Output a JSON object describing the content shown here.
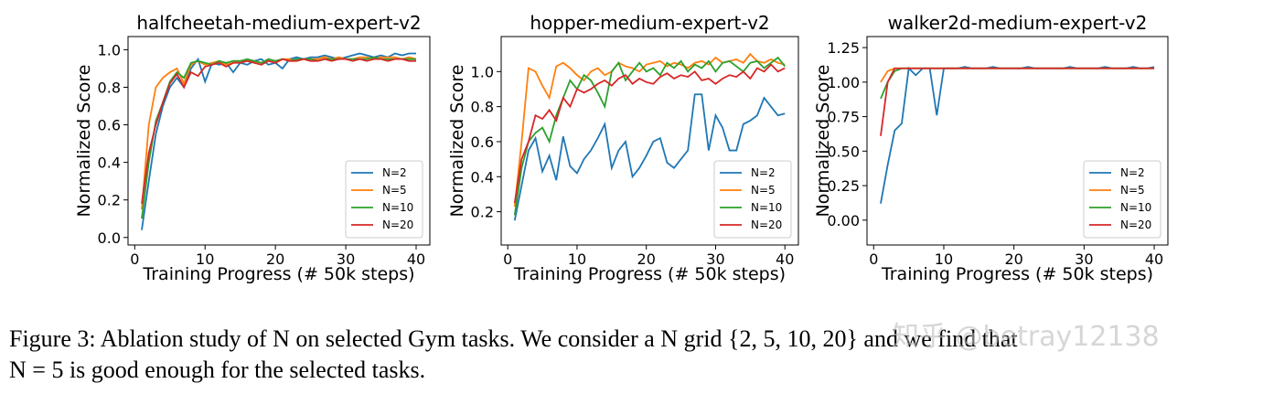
{
  "chart_data": [
    {
      "type": "line",
      "title": "halfcheetah-medium-expert-v2",
      "xlabel": "Training Progress (# 50k steps)",
      "ylabel": "Normalized Score",
      "x": [
        1,
        2,
        3,
        4,
        5,
        6,
        7,
        8,
        9,
        10,
        11,
        12,
        13,
        14,
        15,
        16,
        17,
        18,
        19,
        20,
        21,
        22,
        23,
        24,
        25,
        26,
        27,
        28,
        29,
        30,
        31,
        32,
        33,
        34,
        35,
        36,
        37,
        38,
        39,
        40
      ],
      "xlim": [
        -0.95,
        41.95
      ],
      "xticks": [
        0,
        10,
        20,
        30,
        40
      ],
      "ylim": [
        -0.04,
        1.07
      ],
      "yticks": [
        {
          "value": 0,
          "label": "0.0"
        },
        0.2,
        0.4,
        0.6,
        0.8,
        {
          "value": 1,
          "label": "1.0"
        }
      ],
      "legend": "lower right",
      "series": [
        {
          "name": "N=2",
          "color": "#1f77b4",
          "values": [
            0.04,
            0.3,
            0.55,
            0.7,
            0.8,
            0.85,
            0.8,
            0.9,
            0.95,
            0.83,
            0.93,
            0.92,
            0.93,
            0.88,
            0.93,
            0.92,
            0.94,
            0.95,
            0.92,
            0.93,
            0.9,
            0.95,
            0.96,
            0.95,
            0.96,
            0.96,
            0.97,
            0.96,
            0.95,
            0.96,
            0.97,
            0.98,
            0.97,
            0.96,
            0.97,
            0.96,
            0.98,
            0.97,
            0.98,
            0.98
          ]
        },
        {
          "name": "N=5",
          "color": "#ff7f0e",
          "values": [
            0.15,
            0.6,
            0.8,
            0.85,
            0.88,
            0.9,
            0.82,
            0.92,
            0.94,
            0.92,
            0.93,
            0.94,
            0.92,
            0.93,
            0.94,
            0.94,
            0.94,
            0.93,
            0.95,
            0.94,
            0.95,
            0.95,
            0.94,
            0.95,
            0.95,
            0.95,
            0.96,
            0.95,
            0.96,
            0.95,
            0.95,
            0.96,
            0.96,
            0.95,
            0.96,
            0.96,
            0.96,
            0.95,
            0.96,
            0.95
          ]
        },
        {
          "name": "N=10",
          "color": "#2ca02c",
          "values": [
            0.1,
            0.4,
            0.62,
            0.72,
            0.83,
            0.88,
            0.85,
            0.93,
            0.94,
            0.93,
            0.92,
            0.94,
            0.93,
            0.94,
            0.94,
            0.95,
            0.94,
            0.93,
            0.95,
            0.94,
            0.95,
            0.94,
            0.95,
            0.95,
            0.95,
            0.94,
            0.95,
            0.95,
            0.95,
            0.95,
            0.95,
            0.95,
            0.95,
            0.96,
            0.95,
            0.95,
            0.95,
            0.95,
            0.95,
            0.95
          ]
        },
        {
          "name": "N=20",
          "color": "#d62728",
          "values": [
            0.18,
            0.45,
            0.6,
            0.72,
            0.82,
            0.87,
            0.8,
            0.88,
            0.86,
            0.91,
            0.92,
            0.93,
            0.91,
            0.93,
            0.93,
            0.94,
            0.93,
            0.92,
            0.94,
            0.93,
            0.95,
            0.94,
            0.94,
            0.95,
            0.94,
            0.94,
            0.95,
            0.94,
            0.95,
            0.95,
            0.94,
            0.95,
            0.94,
            0.95,
            0.95,
            0.94,
            0.95,
            0.95,
            0.94,
            0.94
          ]
        }
      ]
    },
    {
      "type": "line",
      "title": "hopper-medium-expert-v2",
      "xlabel": "Training Progress (# 50k steps)",
      "ylabel": "Normalized Score",
      "x": [
        1,
        2,
        3,
        4,
        5,
        6,
        7,
        8,
        9,
        10,
        11,
        12,
        13,
        14,
        15,
        16,
        17,
        18,
        19,
        20,
        21,
        22,
        23,
        24,
        25,
        26,
        27,
        28,
        29,
        30,
        31,
        32,
        33,
        34,
        35,
        36,
        37,
        38,
        39,
        40
      ],
      "xlim": [
        -0.95,
        41.95
      ],
      "xticks": [
        0,
        10,
        20,
        30,
        40
      ],
      "ylim": [
        0.01,
        1.2
      ],
      "yticks": [
        0.2,
        0.4,
        0.6,
        0.8,
        {
          "value": 1,
          "label": "1.0"
        }
      ],
      "legend": "lower right",
      "series": [
        {
          "name": "N=2",
          "color": "#1f77b4",
          "values": [
            0.15,
            0.35,
            0.55,
            0.62,
            0.43,
            0.52,
            0.38,
            0.63,
            0.46,
            0.42,
            0.5,
            0.55,
            0.62,
            0.7,
            0.45,
            0.55,
            0.6,
            0.4,
            0.45,
            0.52,
            0.6,
            0.62,
            0.48,
            0.45,
            0.5,
            0.55,
            0.87,
            0.87,
            0.55,
            0.75,
            0.68,
            0.55,
            0.55,
            0.7,
            0.72,
            0.75,
            0.85,
            0.8,
            0.75,
            0.76
          ]
        },
        {
          "name": "N=5",
          "color": "#ff7f0e",
          "values": [
            0.23,
            0.6,
            1.02,
            1.0,
            0.92,
            0.85,
            1.03,
            1.05,
            1.02,
            0.98,
            0.95,
            1.0,
            1.02,
            0.98,
            1.0,
            1.05,
            1.03,
            1.02,
            1.0,
            1.04,
            1.05,
            1.06,
            1.03,
            1.05,
            1.04,
            1.02,
            1.05,
            1.06,
            1.04,
            1.08,
            1.05,
            1.06,
            1.07,
            1.05,
            1.1,
            1.06,
            1.05,
            1.07,
            1.05,
            1.04
          ]
        },
        {
          "name": "N=10",
          "color": "#2ca02c",
          "values": [
            0.18,
            0.45,
            0.6,
            0.65,
            0.68,
            0.6,
            0.75,
            0.85,
            0.95,
            0.9,
            0.98,
            0.95,
            0.88,
            0.8,
            1.0,
            1.05,
            0.95,
            1.0,
            1.05,
            1.0,
            1.02,
            0.98,
            1.05,
            1.02,
            1.06,
            1.0,
            1.04,
            1.02,
            1.06,
            1.0,
            1.05,
            1.06,
            1.03,
            1.0,
            1.05,
            1.06,
            1.02,
            1.05,
            1.08,
            1.03
          ]
        },
        {
          "name": "N=20",
          "color": "#d62728",
          "values": [
            0.25,
            0.5,
            0.6,
            0.75,
            0.73,
            0.78,
            0.72,
            0.85,
            0.8,
            0.9,
            0.88,
            0.9,
            0.93,
            0.95,
            0.92,
            0.96,
            0.98,
            0.93,
            0.96,
            0.94,
            0.93,
            0.97,
            0.99,
            0.96,
            0.98,
            0.97,
            1.0,
            0.95,
            0.96,
            0.93,
            0.96,
            0.98,
            0.97,
            1.0,
            0.96,
            1.02,
            1.0,
            1.04,
            1.0,
            1.02
          ]
        }
      ]
    },
    {
      "type": "line",
      "title": "walker2d-medium-expert-v2",
      "xlabel": "Training Progress (# 50k steps)",
      "ylabel": "Normalized Score",
      "x": [
        1,
        2,
        3,
        4,
        5,
        6,
        7,
        8,
        9,
        10,
        11,
        12,
        13,
        14,
        15,
        16,
        17,
        18,
        19,
        20,
        21,
        22,
        23,
        24,
        25,
        26,
        27,
        28,
        29,
        30,
        31,
        32,
        33,
        34,
        35,
        36,
        37,
        38,
        39,
        40
      ],
      "xlim": [
        -0.95,
        41.95
      ],
      "xticks": [
        0,
        10,
        20,
        30,
        40
      ],
      "ylim": [
        -0.18,
        1.33
      ],
      "yticks": [
        {
          "value": 0,
          "label": "0.00"
        },
        0.25,
        {
          "value": 0.5,
          "label": "0.50"
        },
        0.75,
        {
          "value": 1,
          "label": "1.00"
        },
        1.25
      ],
      "legend": "lower right",
      "series": [
        {
          "name": "N=2",
          "color": "#1f77b4",
          "values": [
            0.12,
            0.4,
            0.65,
            0.7,
            1.1,
            1.05,
            1.1,
            1.1,
            0.76,
            1.1,
            1.1,
            1.1,
            1.11,
            1.1,
            1.1,
            1.1,
            1.11,
            1.1,
            1.1,
            1.1,
            1.1,
            1.11,
            1.1,
            1.1,
            1.1,
            1.1,
            1.1,
            1.11,
            1.1,
            1.1,
            1.1,
            1.1,
            1.11,
            1.1,
            1.1,
            1.1,
            1.11,
            1.1,
            1.1,
            1.11
          ]
        },
        {
          "name": "N=5",
          "color": "#ff7f0e",
          "values": [
            1.0,
            1.08,
            1.1,
            1.1,
            1.1,
            1.1,
            1.1,
            1.1,
            1.1,
            1.1,
            1.1,
            1.1,
            1.1,
            1.1,
            1.1,
            1.1,
            1.1,
            1.1,
            1.1,
            1.1,
            1.1,
            1.1,
            1.1,
            1.1,
            1.1,
            1.1,
            1.1,
            1.1,
            1.1,
            1.1,
            1.1,
            1.1,
            1.1,
            1.1,
            1.1,
            1.1,
            1.1,
            1.1,
            1.1,
            1.1
          ]
        },
        {
          "name": "N=10",
          "color": "#2ca02c",
          "values": [
            0.88,
            1.0,
            1.08,
            1.1,
            1.1,
            1.1,
            1.1,
            1.1,
            1.1,
            1.1,
            1.1,
            1.1,
            1.1,
            1.1,
            1.1,
            1.1,
            1.1,
            1.1,
            1.1,
            1.1,
            1.1,
            1.1,
            1.1,
            1.1,
            1.1,
            1.1,
            1.1,
            1.1,
            1.1,
            1.1,
            1.1,
            1.1,
            1.1,
            1.1,
            1.1,
            1.1,
            1.1,
            1.1,
            1.1,
            1.1
          ]
        },
        {
          "name": "N=20",
          "color": "#d62728",
          "values": [
            0.61,
            1.0,
            1.1,
            1.1,
            1.1,
            1.1,
            1.1,
            1.1,
            1.1,
            1.1,
            1.1,
            1.1,
            1.1,
            1.1,
            1.1,
            1.1,
            1.1,
            1.1,
            1.1,
            1.1,
            1.1,
            1.1,
            1.1,
            1.1,
            1.1,
            1.1,
            1.1,
            1.1,
            1.1,
            1.1,
            1.1,
            1.1,
            1.1,
            1.1,
            1.1,
            1.1,
            1.1,
            1.1,
            1.1,
            1.1
          ]
        }
      ]
    }
  ],
  "caption": [
    "Figure 3: Ablation study of N on selected Gym tasks. We consider a N grid {2, 5, 10, 20} and we find that",
    "N = 5 is good enough for the selected tasks."
  ],
  "watermark": "知乎 @betray12138"
}
